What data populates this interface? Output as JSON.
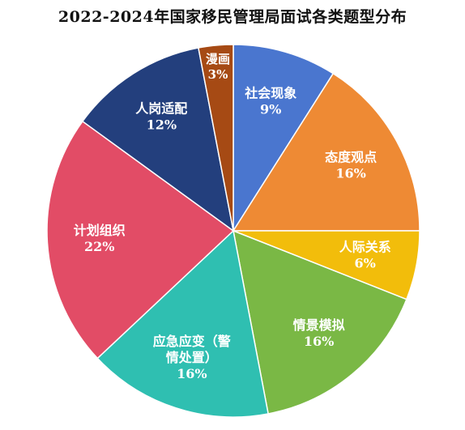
{
  "chart_data": {
    "type": "pie",
    "title": "2022-2024年国家移民管理局面试各类题型分布",
    "slices": [
      {
        "name": "社会现象",
        "label_lines": [
          "社会现象"
        ],
        "value": 9,
        "value_label": "9%",
        "color": "#4a76cf"
      },
      {
        "name": "态度观点",
        "label_lines": [
          "态度观点"
        ],
        "value": 16,
        "value_label": "16%",
        "color": "#ee8a34"
      },
      {
        "name": "人际关系",
        "label_lines": [
          "人际关系"
        ],
        "value": 6,
        "value_label": "6%",
        "color": "#f2bd0b"
      },
      {
        "name": "情景模拟",
        "label_lines": [
          "情景模拟"
        ],
        "value": 16,
        "value_label": "16%",
        "color": "#7ab845"
      },
      {
        "name": "应急应变（警情处置）",
        "label_lines": [
          "应急应变（警",
          "情处置）"
        ],
        "value": 16,
        "value_label": "16%",
        "color": "#2fbfb1"
      },
      {
        "name": "计划组织",
        "label_lines": [
          "计划组织"
        ],
        "value": 22,
        "value_label": "22%",
        "color": "#e24c66"
      },
      {
        "name": "人岗适配",
        "label_lines": [
          "人岗适配"
        ],
        "value": 12,
        "value_label": "12%",
        "color": "#233f7d"
      },
      {
        "name": "漫画",
        "label_lines": [
          "漫画"
        ],
        "value": 3,
        "value_label": "3%",
        "color": "#a64a14"
      }
    ]
  }
}
